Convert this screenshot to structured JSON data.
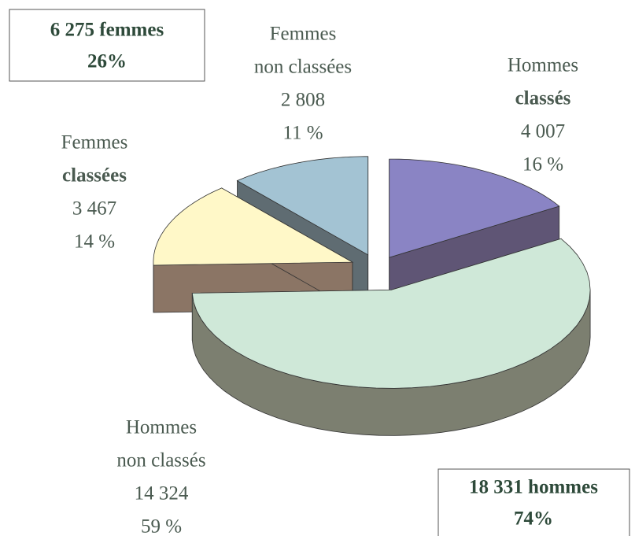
{
  "chart_data": {
    "type": "pie3d",
    "categories": [
      [
        "Hommes",
        "classés"
      ],
      [
        "Hommes",
        "non classés"
      ],
      [
        "Femmes",
        "classées"
      ],
      [
        "Femmes",
        "non classées"
      ]
    ],
    "label_bold": [
      true,
      false,
      true,
      false
    ],
    "values": [
      4007,
      14324,
      3467,
      2808
    ],
    "value_labels": [
      "4 007",
      "14 324",
      "3 467",
      "2 808"
    ],
    "shares": [
      16,
      59,
      14,
      11
    ],
    "share_labels": [
      "16 %",
      "59 %",
      "14 %",
      "11 %"
    ],
    "colors": [
      "#8a84c4",
      "#cfe8d8",
      "#fff8c8",
      "#a3c3d3"
    ],
    "side_colors": [
      "#5f5575",
      "#7c7f70",
      "#8b7565",
      "#5f6c72"
    ],
    "totals": [
      {
        "label": "6 275 femmes",
        "value": 6275,
        "share": 26,
        "share_label": "26%"
      },
      {
        "label": "18 331 hommes",
        "value": 18331,
        "share": 74,
        "share_label": "74%"
      }
    ]
  }
}
